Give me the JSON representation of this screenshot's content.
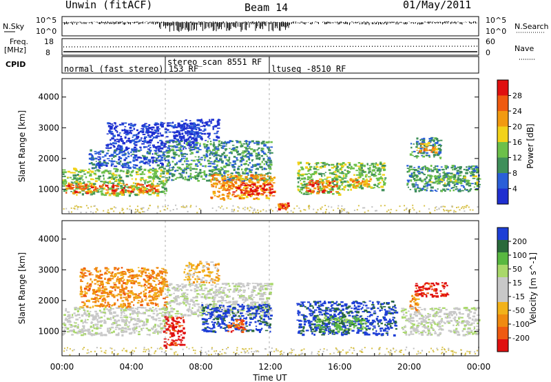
{
  "header": {
    "station": "Unwin (fitACF)",
    "beam": "Beam 14",
    "date": "01/May/2011"
  },
  "noise_panel": {
    "left_label": "N.Sky",
    "right_label": "N.Search",
    "ticks_top": "10^5",
    "ticks_bottom": "10^0"
  },
  "freq_panel": {
    "left_label_1": "Freq.",
    "left_label_2": "[MHz]",
    "left_tick_top": "18",
    "left_tick_bottom": "8",
    "right_tick_top": "60",
    "right_tick_bottom": "0",
    "right_label": "Nave"
  },
  "cpid_panel": {
    "label": "CPID",
    "modes": [
      {
        "name": "normal (fast stereo) 153 RF",
        "start": "00:00",
        "end": "06:00"
      },
      {
        "name": "stereo_scan 8551 RF",
        "start": "06:00",
        "end": "12:00"
      },
      {
        "name": "ltuseq -8510 RF",
        "start": "12:00",
        "end": "24:00"
      }
    ]
  },
  "x_axis": {
    "label": "Time UT",
    "ticks": [
      "00:00",
      "04:00",
      "08:00",
      "12:00",
      "16:00",
      "20:00",
      "00:00"
    ],
    "range_hours": [
      0,
      24
    ]
  },
  "colors": {
    "power": [
      "#1f2fd0",
      "#2a5fd8",
      "#3f8f5a",
      "#6cc04a",
      "#f2d21a",
      "#f29a10",
      "#ef5a10",
      "#e01010"
    ],
    "velocity": [
      "#1e3fd6",
      "#2a6a3a",
      "#58b840",
      "#a9d86a",
      "#c8c8c8",
      "#c8c8c8",
      "#f2b21a",
      "#f08a10",
      "#ef5a10",
      "#e01010"
    ],
    "ground_scatter": "#c0c0c0"
  },
  "chart_data": [
    {
      "type": "heatmap",
      "title": "",
      "xlabel": "",
      "ylabel": "Slant Range [km]",
      "xlim": [
        0,
        24
      ],
      "ylim": [
        200,
        4600
      ],
      "y_ticks": [
        "1000",
        "2000",
        "3000",
        "4000"
      ],
      "colorbar": {
        "label": "Power [dB]",
        "ticks": [
          "4",
          "8",
          "12",
          "16",
          "20",
          "24",
          "28"
        ],
        "range": [
          0,
          32
        ]
      },
      "patches": [
        {
          "t0": 0.0,
          "t1": 6.0,
          "r0": 820,
          "r1": 1700,
          "level": 3
        },
        {
          "t0": 0.2,
          "t1": 5.5,
          "r0": 900,
          "r1": 1200,
          "level": 6
        },
        {
          "t0": 1.5,
          "t1": 6.0,
          "r0": 1700,
          "r1": 2300,
          "level": 1
        },
        {
          "t0": 2.5,
          "t1": 7.8,
          "r0": 2300,
          "r1": 3200,
          "level": 0
        },
        {
          "t0": 6.0,
          "t1": 12.0,
          "r0": 1300,
          "r1": 2600,
          "level": 2
        },
        {
          "t0": 6.5,
          "t1": 9.0,
          "r0": 2600,
          "r1": 3300,
          "level": 0
        },
        {
          "t0": 8.5,
          "t1": 12.2,
          "r0": 700,
          "r1": 1500,
          "level": 5
        },
        {
          "t0": 9.8,
          "t1": 12.1,
          "r0": 850,
          "r1": 1200,
          "level": 7
        },
        {
          "t0": 12.4,
          "t1": 13.0,
          "r0": 380,
          "r1": 600,
          "level": 6
        },
        {
          "t0": 13.5,
          "t1": 16.0,
          "r0": 850,
          "r1": 1900,
          "level": 3
        },
        {
          "t0": 14.0,
          "t1": 15.8,
          "r0": 900,
          "r1": 1300,
          "level": 6
        },
        {
          "t0": 16.0,
          "t1": 18.6,
          "r0": 1000,
          "r1": 1900,
          "level": 3
        },
        {
          "t0": 16.5,
          "t1": 17.8,
          "r0": 1100,
          "r1": 1400,
          "level": 5
        },
        {
          "t0": 20.0,
          "t1": 21.8,
          "r0": 2050,
          "r1": 2700,
          "level": 2
        },
        {
          "t0": 20.4,
          "t1": 21.5,
          "r0": 2200,
          "r1": 2550,
          "level": 5
        },
        {
          "t0": 19.8,
          "t1": 24.0,
          "r0": 950,
          "r1": 1800,
          "level": 2
        },
        {
          "t0": 21.0,
          "t1": 24.0,
          "r0": 1200,
          "r1": 1500,
          "level": 3
        }
      ]
    },
    {
      "type": "heatmap",
      "title": "",
      "xlabel": "Time UT",
      "ylabel": "Slant Range [km]",
      "xlim": [
        0,
        24
      ],
      "ylim": [
        200,
        4600
      ],
      "y_ticks": [
        "1000",
        "2000",
        "3000",
        "4000"
      ],
      "colorbar": {
        "label": "Velocity [m s^-1]",
        "ticks": [
          "200",
          "100",
          "50",
          "15",
          "-15",
          "-50",
          "-100",
          "-200"
        ],
        "range": [
          -250,
          250
        ]
      },
      "patches": [
        {
          "t0": 0.0,
          "t1": 6.0,
          "r0": 900,
          "r1": 1800,
          "level": 4
        },
        {
          "t0": 1.0,
          "t1": 6.0,
          "r0": 1800,
          "r1": 3100,
          "level": 7
        },
        {
          "t0": 5.8,
          "t1": 7.0,
          "r0": 500,
          "r1": 1500,
          "level": 9
        },
        {
          "t0": 6.0,
          "t1": 12.0,
          "r0": 1500,
          "r1": 2600,
          "level": 4
        },
        {
          "t0": 7.0,
          "t1": 9.0,
          "r0": 2600,
          "r1": 3300,
          "level": 6
        },
        {
          "t0": 8.0,
          "t1": 12.0,
          "r0": 1000,
          "r1": 1900,
          "level": 0
        },
        {
          "t0": 9.5,
          "t1": 10.5,
          "r0": 1000,
          "r1": 1400,
          "level": 8
        },
        {
          "t0": 13.5,
          "t1": 19.2,
          "r0": 900,
          "r1": 2000,
          "level": 0
        },
        {
          "t0": 14.5,
          "t1": 17.5,
          "r0": 1000,
          "r1": 1500,
          "level": 2
        },
        {
          "t0": 20.3,
          "t1": 22.2,
          "r0": 2150,
          "r1": 2600,
          "level": 9
        },
        {
          "t0": 20.0,
          "t1": 20.5,
          "r0": 1600,
          "r1": 2200,
          "level": 7
        },
        {
          "t0": 19.5,
          "t1": 24.0,
          "r0": 900,
          "r1": 1800,
          "level": 4
        }
      ]
    }
  ]
}
